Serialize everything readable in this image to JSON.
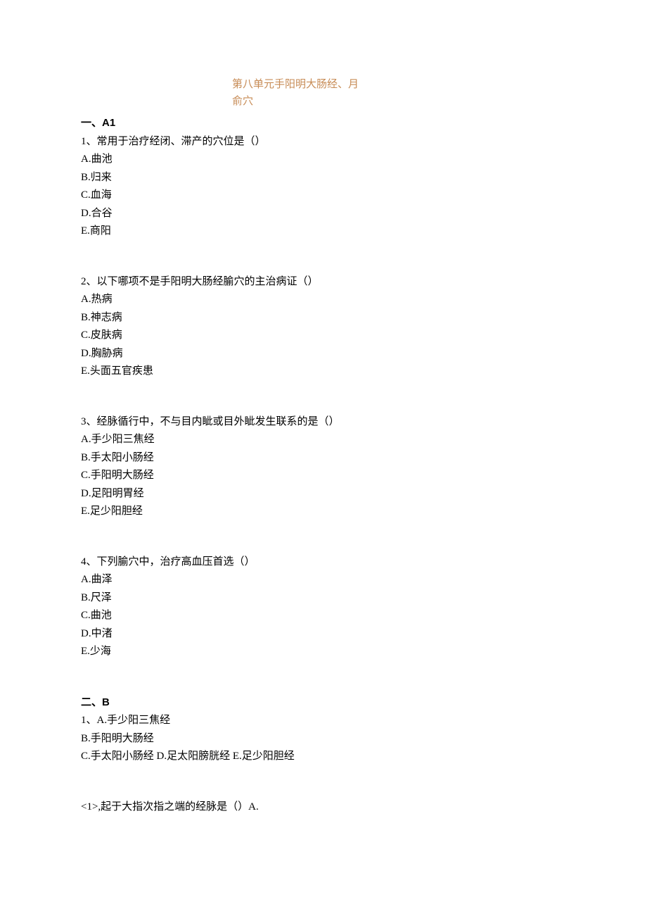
{
  "title_line1": "第八单元手阳明大肠经、月",
  "title_line2": "俞穴",
  "sectionA": {
    "head_prefix": "一、",
    "head_latin": "A1",
    "q1": {
      "stem": "1、常用于治疗经闭、滞产的穴位是（）",
      "A": "A.曲池",
      "B": "B.归来",
      "C": "C.血海",
      "D": "D.合谷",
      "E": "E.商阳"
    },
    "q2": {
      "stem": "2、以下哪项不是手阳明大肠经腧穴的主治病证（）",
      "A": "A.热病",
      "B": "B.神志病",
      "C": "C.皮肤病",
      "D": "D.胸胁病",
      "E": "E.头面五官疾患"
    },
    "q3": {
      "stem": "3、经脉循行中，不与目内眦或目外眦发生联系的是（）",
      "A": "A.手少阳三焦经",
      "B": "B.手太阳小肠经",
      "C": "C.手阳明大肠经",
      "D": "D.足阳明胃经",
      "E": "E.足少阳胆经"
    },
    "q4": {
      "stem": "4、下列腧穴中，治疗高血压首选（）",
      "A": "A.曲泽",
      "B": "B.尺泽",
      "C": "C.曲池",
      "D": "D.中渚",
      "E": "E.少海"
    }
  },
  "sectionB": {
    "head_prefix": "二、",
    "head_latin": "B",
    "q1": {
      "stem": "1、A.手少阳三焦经",
      "B": "B.手阳明大肠经",
      "CDE": "C.手太阳小肠经 D.足太阳膀胱经 E.足少阳胆经",
      "sub1": "<1>,起于大指次指之端的经脉是（）A."
    }
  }
}
